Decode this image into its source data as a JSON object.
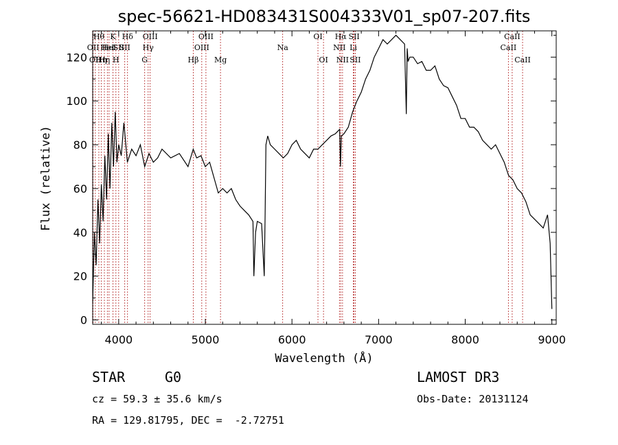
{
  "chart_data": {
    "type": "line",
    "title": "spec-56621-HD083431S004333V01_sp07-207.fits",
    "xlabel": "Wavelength (Å)",
    "ylabel": "Flux (relative)",
    "xlim": [
      3700,
      9050
    ],
    "ylim": [
      -2,
      132
    ],
    "xticks": [
      4000,
      5000,
      6000,
      7000,
      8000,
      9000
    ],
    "yticks": [
      0,
      20,
      40,
      60,
      80,
      100,
      120
    ],
    "series": [
      {
        "name": "spectrum",
        "x": [
          3700,
          3720,
          3740,
          3760,
          3780,
          3800,
          3820,
          3840,
          3860,
          3880,
          3900,
          3920,
          3940,
          3960,
          3980,
          4000,
          4030,
          4060,
          4100,
          4150,
          4200,
          4250,
          4300,
          4350,
          4400,
          4450,
          4500,
          4600,
          4700,
          4800,
          4860,
          4900,
          4950,
          5000,
          5050,
          5100,
          5150,
          5200,
          5250,
          5300,
          5350,
          5400,
          5450,
          5500,
          5550,
          5560,
          5580,
          5600,
          5650,
          5680,
          5690,
          5700,
          5720,
          5750,
          5800,
          5850,
          5900,
          5950,
          6000,
          6050,
          6100,
          6150,
          6200,
          6250,
          6300,
          6350,
          6400,
          6450,
          6500,
          6550,
          6560,
          6570,
          6600,
          6650,
          6700,
          6750,
          6800,
          6850,
          6900,
          6950,
          7000,
          7050,
          7100,
          7150,
          7200,
          7250,
          7300,
          7320,
          7330,
          7340,
          7360,
          7400,
          7450,
          7500,
          7550,
          7600,
          7650,
          7700,
          7750,
          7800,
          7850,
          7900,
          7950,
          8000,
          8050,
          8100,
          8150,
          8200,
          8250,
          8300,
          8350,
          8400,
          8450,
          8500,
          8550,
          8600,
          8650,
          8700,
          8750,
          8800,
          8850,
          8900,
          8950,
          8980,
          9000
        ],
        "values": [
          8,
          40,
          25,
          55,
          35,
          62,
          45,
          75,
          55,
          85,
          60,
          90,
          70,
          95,
          72,
          80,
          75,
          90,
          72,
          78,
          75,
          80,
          70,
          76,
          72,
          74,
          78,
          74,
          76,
          70,
          78,
          74,
          75,
          70,
          72,
          65,
          58,
          60,
          58,
          60,
          55,
          52,
          50,
          48,
          45,
          20,
          40,
          45,
          44,
          20,
          48,
          80,
          84,
          80,
          78,
          76,
          74,
          76,
          80,
          82,
          78,
          76,
          74,
          78,
          78,
          80,
          82,
          84,
          85,
          87,
          70,
          84,
          85,
          88,
          95,
          100,
          104,
          110,
          114,
          120,
          124,
          128,
          126,
          128,
          130,
          128,
          126,
          94,
          124,
          118,
          120,
          120,
          117,
          118,
          114,
          114,
          116,
          110,
          107,
          106,
          102,
          98,
          92,
          92,
          88,
          88,
          86,
          82,
          80,
          78,
          80,
          76,
          72,
          66,
          64,
          60,
          58,
          54,
          48,
          46,
          44,
          42,
          48,
          35,
          5
        ]
      }
    ],
    "line_markers": [
      {
        "wl": 3705,
        "label": "OII",
        "row": 2
      },
      {
        "wl": 3730,
        "label": "OII",
        "row": 3
      },
      {
        "wl": 3771,
        "label": "Hθ",
        "row": 1
      },
      {
        "wl": 3798,
        "label": "Hη",
        "row": 3
      },
      {
        "wl": 3835,
        "label": "Hη",
        "row": 3
      },
      {
        "wl": 3869,
        "label": "HeI",
        "row": 2
      },
      {
        "wl": 3889,
        "label": "HeI",
        "row": 2
      },
      {
        "wl": 3934,
        "label": "K",
        "row": 1
      },
      {
        "wl": 3968,
        "label": "H",
        "row": 3
      },
      {
        "wl": 4000,
        "label": "SII",
        "row": 2
      },
      {
        "wl": 4070,
        "label": "SII",
        "row": 2
      },
      {
        "wl": 4102,
        "label": "Hδ",
        "row": 1
      },
      {
        "wl": 4300,
        "label": "G",
        "row": 3
      },
      {
        "wl": 4340,
        "label": "Hγ",
        "row": 2
      },
      {
        "wl": 4363,
        "label": "OIII",
        "row": 1
      },
      {
        "wl": 4861,
        "label": "Hβ",
        "row": 3
      },
      {
        "wl": 4959,
        "label": "OIII",
        "row": 2
      },
      {
        "wl": 5007,
        "label": "OIII",
        "row": 1
      },
      {
        "wl": 5175,
        "label": "Mg",
        "row": 3
      },
      {
        "wl": 5893,
        "label": "Na",
        "row": 2
      },
      {
        "wl": 6300,
        "label": "OI",
        "row": 1
      },
      {
        "wl": 6364,
        "label": "OI",
        "row": 3
      },
      {
        "wl": 6548,
        "label": "NII",
        "row": 2
      },
      {
        "wl": 6563,
        "label": "Hα",
        "row": 1
      },
      {
        "wl": 6584,
        "label": "NII",
        "row": 3
      },
      {
        "wl": 6708,
        "label": "Li",
        "row": 2
      },
      {
        "wl": 6717,
        "label": "SII",
        "row": 1
      },
      {
        "wl": 6731,
        "label": "SII",
        "row": 3
      },
      {
        "wl": 8498,
        "label": "CaII",
        "row": 2
      },
      {
        "wl": 8542,
        "label": "CaII",
        "row": 1
      },
      {
        "wl": 8662,
        "label": "CaII",
        "row": 3
      }
    ]
  },
  "info": {
    "object_class": "STAR",
    "subclass": "G0",
    "survey": "LAMOST DR3",
    "cz": "cz = 59.3 ± 35.6 km/s",
    "obs_date": "Obs-Date: 20131124",
    "coords": "RA = 129.81795, DEC =  -2.72751"
  }
}
